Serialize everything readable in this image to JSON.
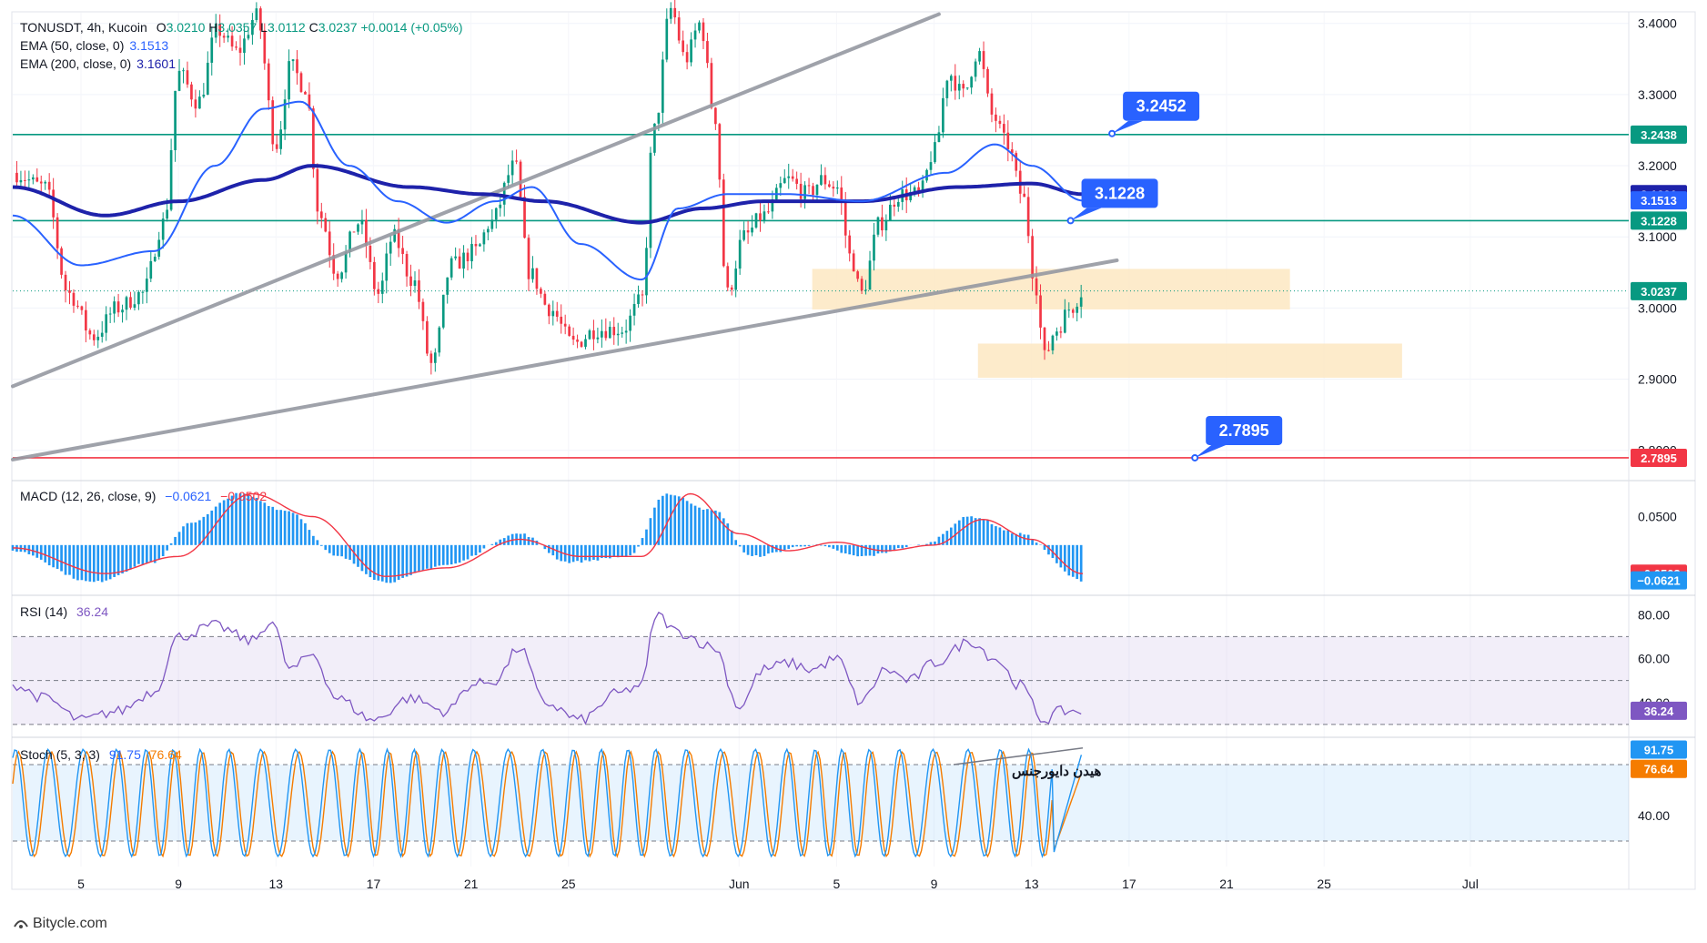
{
  "header": {
    "symbol": "TONUSDT, 4h, Kucoin",
    "ohlc_prefix": "O",
    "open": "3.0210",
    "high_prefix": "H",
    "high": "3.0357",
    "low_prefix": "L",
    "low": "3.0112",
    "close_prefix": "C",
    "close": "3.0237",
    "change": "+0.0014 (+0.05%)",
    "ema50_label": "EMA (50, close, 0)",
    "ema50_value": "3.1513",
    "ema200_label": "EMA (200, close, 0)",
    "ema200_value": "3.1601"
  },
  "macd": {
    "label": "MACD (12, 26, close, 9)",
    "value1": "−0.0621",
    "value2": "−0.0502"
  },
  "rsi": {
    "label": "RSI (14)",
    "value": "36.24"
  },
  "stoch": {
    "label": "Stoch (5, 3, 3)",
    "k": "91.75",
    "d": "76.64"
  },
  "annotation_text": "هیدن دایورجنس",
  "footer": {
    "brand": "Bitycle.com"
  },
  "colors": {
    "up": "#089981",
    "down": "#f23645",
    "ema50": "#2962ff",
    "ema200": "#1e22aa",
    "trendline": "#9598a1",
    "level": "#089981",
    "support_red": "#f23645",
    "zone": "#fde7c2",
    "callout": "#2962ff",
    "rsi": "#7e57c2",
    "stoch_k": "#2196f3",
    "stoch_d": "#f57c00",
    "macd_hist": "#2196f3",
    "macd_signal": "#f23645"
  },
  "chart_data": [
    {
      "type": "candlestick",
      "title": "TONUSDT, 4h, Kucoin",
      "ylim": [
        2.76,
        3.415
      ],
      "y_ticks": [
        "3.4000",
        "3.3000",
        "3.2000",
        "3.1000",
        "3.0000",
        "2.9000",
        "2.8000"
      ],
      "y_tick_values": [
        3.4,
        3.3,
        3.2,
        3.1,
        3.0,
        2.9,
        2.8
      ],
      "x_ticks": [
        "5",
        "9",
        "13",
        "17",
        "21",
        "25",
        "Jun",
        "5",
        "9",
        "13",
        "17",
        "21",
        "25",
        "Jul"
      ],
      "x_tick_days": [
        5,
        9,
        13,
        17,
        21,
        25,
        32,
        36,
        40,
        44,
        48,
        52,
        56,
        62
      ],
      "x_range_days": [
        2.2,
        68.5
      ],
      "last_candle_day": 46.1,
      "anchors": [
        [
          2.2,
          3.19
        ],
        [
          3.5,
          3.17
        ],
        [
          4.5,
          3.02
        ],
        [
          5.5,
          2.96
        ],
        [
          6.5,
          3.0
        ],
        [
          7.5,
          3.02
        ],
        [
          8.4,
          3.12
        ],
        [
          9.0,
          3.33
        ],
        [
          9.8,
          3.29
        ],
        [
          10.6,
          3.39
        ],
        [
          11.4,
          3.36
        ],
        [
          12.2,
          3.41
        ],
        [
          13.0,
          3.23
        ],
        [
          13.6,
          3.34
        ],
        [
          14.2,
          3.31
        ],
        [
          14.8,
          3.13
        ],
        [
          15.5,
          3.05
        ],
        [
          16.4,
          3.12
        ],
        [
          17.2,
          3.02
        ],
        [
          17.8,
          3.1
        ],
        [
          18.6,
          3.04
        ],
        [
          19.4,
          2.92
        ],
        [
          20.2,
          3.06
        ],
        [
          21.2,
          3.08
        ],
        [
          21.8,
          3.12
        ],
        [
          22.8,
          3.2
        ],
        [
          23.4,
          3.05
        ],
        [
          24.2,
          3.0
        ],
        [
          25.2,
          2.95
        ],
        [
          26.2,
          2.97
        ],
        [
          27.2,
          2.97
        ],
        [
          28.0,
          3.01
        ],
        [
          28.5,
          3.25
        ],
        [
          29.2,
          3.42
        ],
        [
          29.8,
          3.35
        ],
        [
          30.4,
          3.4
        ],
        [
          31.0,
          3.27
        ],
        [
          31.5,
          3.02
        ],
        [
          32.2,
          3.1
        ],
        [
          33.0,
          3.13
        ],
        [
          34.0,
          3.18
        ],
        [
          34.8,
          3.16
        ],
        [
          35.4,
          3.18
        ],
        [
          36.0,
          3.17
        ],
        [
          36.6,
          3.07
        ],
        [
          37.0,
          3.02
        ],
        [
          37.8,
          3.12
        ],
        [
          38.6,
          3.16
        ],
        [
          39.4,
          3.16
        ],
        [
          40.0,
          3.22
        ],
        [
          40.6,
          3.33
        ],
        [
          41.2,
          3.3
        ],
        [
          41.8,
          3.36
        ],
        [
          42.4,
          3.27
        ],
        [
          43.0,
          3.23
        ],
        [
          43.6,
          3.16
        ],
        [
          44.2,
          3.03
        ],
        [
          44.5,
          2.93
        ],
        [
          45.0,
          2.97
        ],
        [
          45.6,
          3.0
        ],
        [
          46.1,
          3.024
        ]
      ],
      "ema50_anchors": [
        [
          2.2,
          3.13
        ],
        [
          5.0,
          3.06
        ],
        [
          8.0,
          3.08
        ],
        [
          10.5,
          3.2
        ],
        [
          12.5,
          3.28
        ],
        [
          14.0,
          3.29
        ],
        [
          16.0,
          3.2
        ],
        [
          18.0,
          3.15
        ],
        [
          20.0,
          3.12
        ],
        [
          22.0,
          3.15
        ],
        [
          23.5,
          3.17
        ],
        [
          25.5,
          3.09
        ],
        [
          28.0,
          3.04
        ],
        [
          29.5,
          3.14
        ],
        [
          31.5,
          3.16
        ],
        [
          34.0,
          3.16
        ],
        [
          37.0,
          3.15
        ],
        [
          40.5,
          3.19
        ],
        [
          42.5,
          3.23
        ],
        [
          44.0,
          3.2
        ],
        [
          46.1,
          3.151
        ]
      ],
      "ema200_anchors": [
        [
          2.2,
          3.17
        ],
        [
          6.0,
          3.13
        ],
        [
          9.0,
          3.15
        ],
        [
          12.5,
          3.18
        ],
        [
          14.5,
          3.2
        ],
        [
          18.5,
          3.17
        ],
        [
          21.5,
          3.16
        ],
        [
          24.0,
          3.15
        ],
        [
          28.0,
          3.12
        ],
        [
          30.5,
          3.14
        ],
        [
          33.0,
          3.15
        ],
        [
          37.0,
          3.15
        ],
        [
          41.0,
          3.17
        ],
        [
          44.0,
          3.175
        ],
        [
          46.1,
          3.16
        ]
      ],
      "horizontal_levels": [
        {
          "value": 3.2438,
          "label": "3.2438",
          "color": "#089981"
        },
        {
          "value": 3.1228,
          "label": "3.1228",
          "color": "#089981"
        },
        {
          "value": 2.7895,
          "label": "2.7895",
          "color": "#f23645"
        }
      ],
      "trendlines": [
        {
          "from": [
            2.2,
            2.89
          ],
          "to": [
            40.2,
            3.413
          ]
        },
        {
          "from": [
            2.2,
            2.787
          ],
          "to": [
            47.5,
            3.067
          ]
        }
      ],
      "zones": [
        {
          "day_from": 35.0,
          "day_to": 54.6,
          "low": 2.998,
          "high": 3.055
        },
        {
          "day_from": 41.8,
          "day_to": 59.2,
          "low": 2.902,
          "high": 2.95
        }
      ],
      "callouts": [
        {
          "label": "3.2452",
          "value": 3.2452,
          "day": 47.3
        },
        {
          "label": "3.1228",
          "value": 3.1228,
          "day": 45.6
        },
        {
          "label": "2.7895",
          "value": 2.7895,
          "day": 50.7
        }
      ],
      "price_tags": [
        {
          "label": "3.2438",
          "value": 3.2438,
          "color": "#089981"
        },
        {
          "label": "3.1601",
          "value": 3.1601,
          "color": "#1e22aa"
        },
        {
          "label": "3.1513",
          "value": 3.1513,
          "color": "#2962ff"
        },
        {
          "label": "3.1228",
          "value": 3.1228,
          "color": "#089981"
        },
        {
          "label": "3.0237",
          "value": 3.0237,
          "color": "#089981"
        },
        {
          "label": "2.7895",
          "value": 2.7895,
          "color": "#f23645"
        }
      ]
    },
    {
      "type": "bar",
      "title": "MACD (12, 26, close, 9)",
      "ylim": [
        -0.085,
        0.11
      ],
      "y_ticks": [
        "0.0500"
      ],
      "y_tick_values": [
        0.05
      ],
      "hist_anchors": [
        [
          2.2,
          -0.01
        ],
        [
          5.5,
          -0.065
        ],
        [
          8.0,
          -0.03
        ],
        [
          9.5,
          0.04
        ],
        [
          11.5,
          0.09
        ],
        [
          13.5,
          0.06
        ],
        [
          15.5,
          -0.02
        ],
        [
          17.5,
          -0.065
        ],
        [
          20.0,
          -0.035
        ],
        [
          23.0,
          0.02
        ],
        [
          25.0,
          -0.03
        ],
        [
          27.5,
          -0.02
        ],
        [
          29.0,
          0.09
        ],
        [
          31.0,
          0.06
        ],
        [
          32.5,
          -0.02
        ],
        [
          35.0,
          0.0
        ],
        [
          37.0,
          -0.02
        ],
        [
          39.5,
          0.0
        ],
        [
          41.5,
          0.05
        ],
        [
          43.5,
          0.02
        ],
        [
          46.1,
          -0.0621
        ]
      ],
      "signal_anchors": [
        [
          2.2,
          -0.005
        ],
        [
          6.0,
          -0.05
        ],
        [
          9.0,
          -0.02
        ],
        [
          12.0,
          0.09
        ],
        [
          14.5,
          0.05
        ],
        [
          17.5,
          -0.055
        ],
        [
          20.0,
          -0.04
        ],
        [
          23.0,
          0.01
        ],
        [
          25.5,
          -0.02
        ],
        [
          28.0,
          -0.02
        ],
        [
          30.0,
          0.09
        ],
        [
          32.0,
          0.02
        ],
        [
          34.0,
          -0.01
        ],
        [
          36.0,
          0.005
        ],
        [
          38.0,
          -0.01
        ],
        [
          40.0,
          0.0
        ],
        [
          42.0,
          0.045
        ],
        [
          44.0,
          0.01
        ],
        [
          46.1,
          -0.0502
        ]
      ],
      "price_tags": [
        {
          "label": "−0.0502",
          "value": -0.0502,
          "color": "#f23645"
        },
        {
          "label": "−0.0621",
          "value": -0.0621,
          "color": "#2196f3"
        }
      ]
    },
    {
      "type": "line",
      "title": "RSI (14)",
      "ylim": [
        25,
        88
      ],
      "y_ticks": [
        "80.00",
        "60.00",
        "40.00"
      ],
      "y_tick_values": [
        80,
        60,
        40
      ],
      "bands": [
        70,
        50,
        30
      ],
      "anchors": [
        [
          2.2,
          48
        ],
        [
          3.5,
          42
        ],
        [
          5.0,
          32
        ],
        [
          6.5,
          36
        ],
        [
          8.0,
          45
        ],
        [
          9.0,
          70
        ],
        [
          10.5,
          75
        ],
        [
          12.0,
          68
        ],
        [
          12.8,
          77
        ],
        [
          13.6,
          55
        ],
        [
          14.5,
          62
        ],
        [
          15.5,
          42
        ],
        [
          17.0,
          32
        ],
        [
          18.5,
          42
        ],
        [
          20.0,
          36
        ],
        [
          21.0,
          48
        ],
        [
          22.0,
          50
        ],
        [
          23.0,
          65
        ],
        [
          24.0,
          40
        ],
        [
          25.5,
          32
        ],
        [
          27.0,
          44
        ],
        [
          28.0,
          48
        ],
        [
          28.6,
          80
        ],
        [
          29.5,
          72
        ],
        [
          31.0,
          65
        ],
        [
          32.0,
          38
        ],
        [
          33.0,
          55
        ],
        [
          34.0,
          58
        ],
        [
          35.0,
          55
        ],
        [
          36.0,
          60
        ],
        [
          37.0,
          40
        ],
        [
          38.0,
          55
        ],
        [
          39.0,
          50
        ],
        [
          40.0,
          58
        ],
        [
          41.5,
          68
        ],
        [
          42.5,
          60
        ],
        [
          43.5,
          48
        ],
        [
          44.5,
          32
        ],
        [
          45.2,
          36
        ],
        [
          46.1,
          36.24
        ]
      ],
      "price_tags": [
        {
          "label": "36.24",
          "value": 36.24,
          "color": "#7e57c2"
        }
      ]
    },
    {
      "type": "line",
      "title": "Stoch (5, 3, 3)",
      "ylim": [
        0,
        100
      ],
      "y_ticks": [
        "40.00"
      ],
      "y_tick_values": [
        40
      ],
      "bands": [
        80,
        20
      ],
      "oscillation_days": [
        2.2,
        46.1
      ],
      "last_k": 91.75,
      "last_d": 76.64,
      "divergence_line": {
        "from": [
          40.8,
          80
        ],
        "to": [
          46.1,
          93
        ]
      },
      "price_tags": [
        {
          "label": "91.75",
          "value": 91.75,
          "color": "#2196f3"
        },
        {
          "label": "76.64",
          "value": 76.64,
          "color": "#f57c00"
        }
      ]
    }
  ]
}
